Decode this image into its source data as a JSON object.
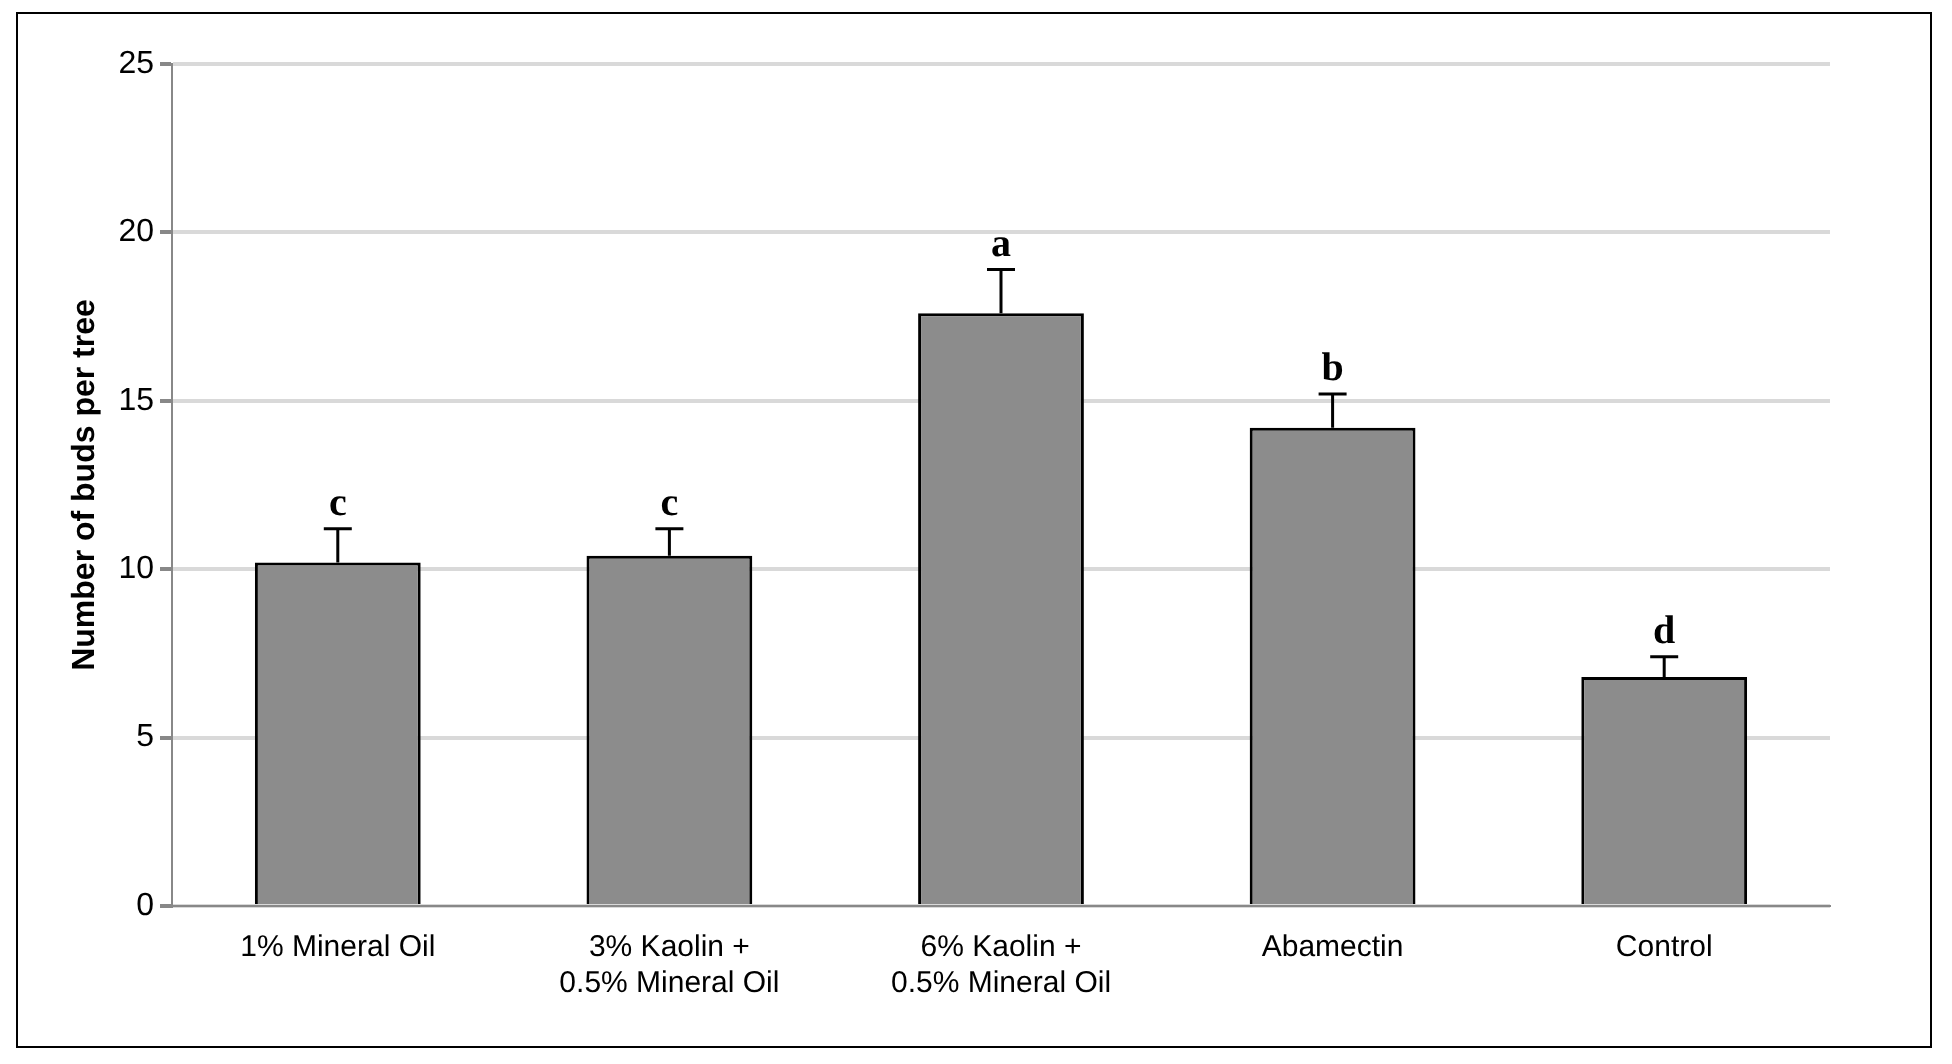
{
  "chart_data": {
    "type": "bar",
    "ylabel": "Number of buds per tree",
    "categories": [
      "1% Mineral Oil",
      "3% Kaolin  + 0.5% Mineral Oil",
      "6% Kaolin  + 0.5% Mineral Oil",
      "Abamectin",
      "Control"
    ],
    "values": [
      10.2,
      10.4,
      17.6,
      14.2,
      6.8
    ],
    "errors": [
      1.0,
      0.8,
      1.3,
      1.0,
      0.6
    ],
    "color": "#8c8c8c",
    "ylim": [
      0,
      25
    ],
    "yticks": [
      0,
      5,
      10,
      15,
      20,
      25
    ],
    "grid": "y",
    "legend": false,
    "annotations": [
      {
        "text": "c",
        "x": "1% Mineral Oil",
        "y": 11.2
      },
      {
        "text": "c",
        "x": "3% Kaolin  + 0.5% Mineral Oil",
        "y": 11.2
      },
      {
        "text": "a",
        "x": "6% Kaolin  + 0.5% Mineral Oil",
        "y": 18.9
      },
      {
        "text": "b",
        "x": "Abamectin",
        "y": 15.2
      },
      {
        "text": "d",
        "x": "Control",
        "y": 7.4
      }
    ]
  }
}
